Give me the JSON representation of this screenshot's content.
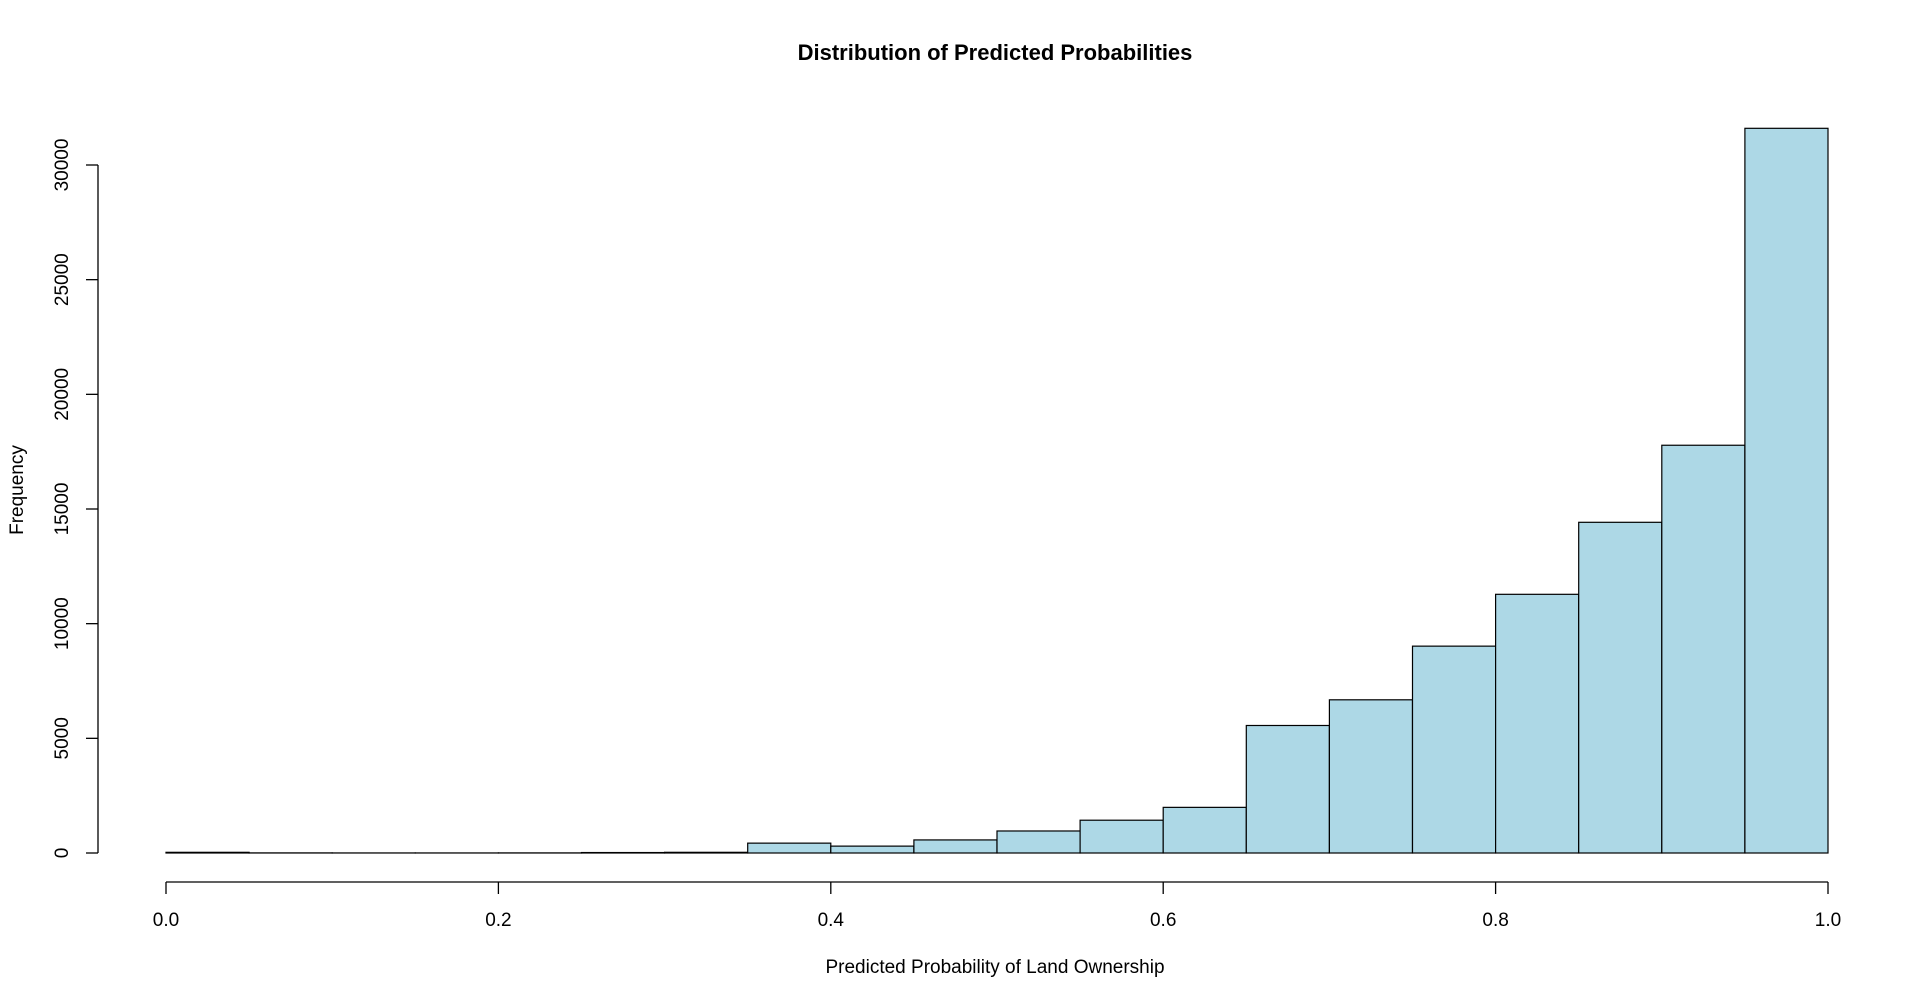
{
  "chart_data": {
    "type": "bar",
    "title": "Distribution of Predicted Probabilities",
    "xlabel": "Predicted Probability of Land Ownership",
    "ylabel": "Frequency",
    "xlim": [
      0.0,
      1.0
    ],
    "ylim": [
      0,
      31500
    ],
    "xticks": [
      "0.0",
      "0.2",
      "0.4",
      "0.6",
      "0.8",
      "1.0"
    ],
    "yticks": [
      "0",
      "5000",
      "10000",
      "15000",
      "20000",
      "25000",
      "30000"
    ],
    "bin_width": 0.05,
    "bins": [
      {
        "start": 0.0,
        "end": 0.05,
        "value": 30
      },
      {
        "start": 0.05,
        "end": 0.1,
        "value": 5
      },
      {
        "start": 0.1,
        "end": 0.15,
        "value": 3
      },
      {
        "start": 0.15,
        "end": 0.2,
        "value": 3
      },
      {
        "start": 0.2,
        "end": 0.25,
        "value": 5
      },
      {
        "start": 0.25,
        "end": 0.3,
        "value": 20
      },
      {
        "start": 0.3,
        "end": 0.35,
        "value": 30
      },
      {
        "start": 0.35,
        "end": 0.4,
        "value": 430
      },
      {
        "start": 0.4,
        "end": 0.45,
        "value": 300
      },
      {
        "start": 0.45,
        "end": 0.5,
        "value": 570
      },
      {
        "start": 0.5,
        "end": 0.55,
        "value": 960
      },
      {
        "start": 0.55,
        "end": 0.6,
        "value": 1430
      },
      {
        "start": 0.6,
        "end": 0.65,
        "value": 1990
      },
      {
        "start": 0.65,
        "end": 0.7,
        "value": 5560
      },
      {
        "start": 0.7,
        "end": 0.75,
        "value": 6680
      },
      {
        "start": 0.75,
        "end": 0.8,
        "value": 9020
      },
      {
        "start": 0.8,
        "end": 0.85,
        "value": 11280
      },
      {
        "start": 0.85,
        "end": 0.9,
        "value": 14420
      },
      {
        "start": 0.9,
        "end": 0.95,
        "value": 17780
      },
      {
        "start": 0.95,
        "end": 1.0,
        "value": 31600
      }
    ],
    "bar_color": "#add8e6",
    "bar_border": "#000000",
    "grid": false,
    "legend": "none"
  }
}
